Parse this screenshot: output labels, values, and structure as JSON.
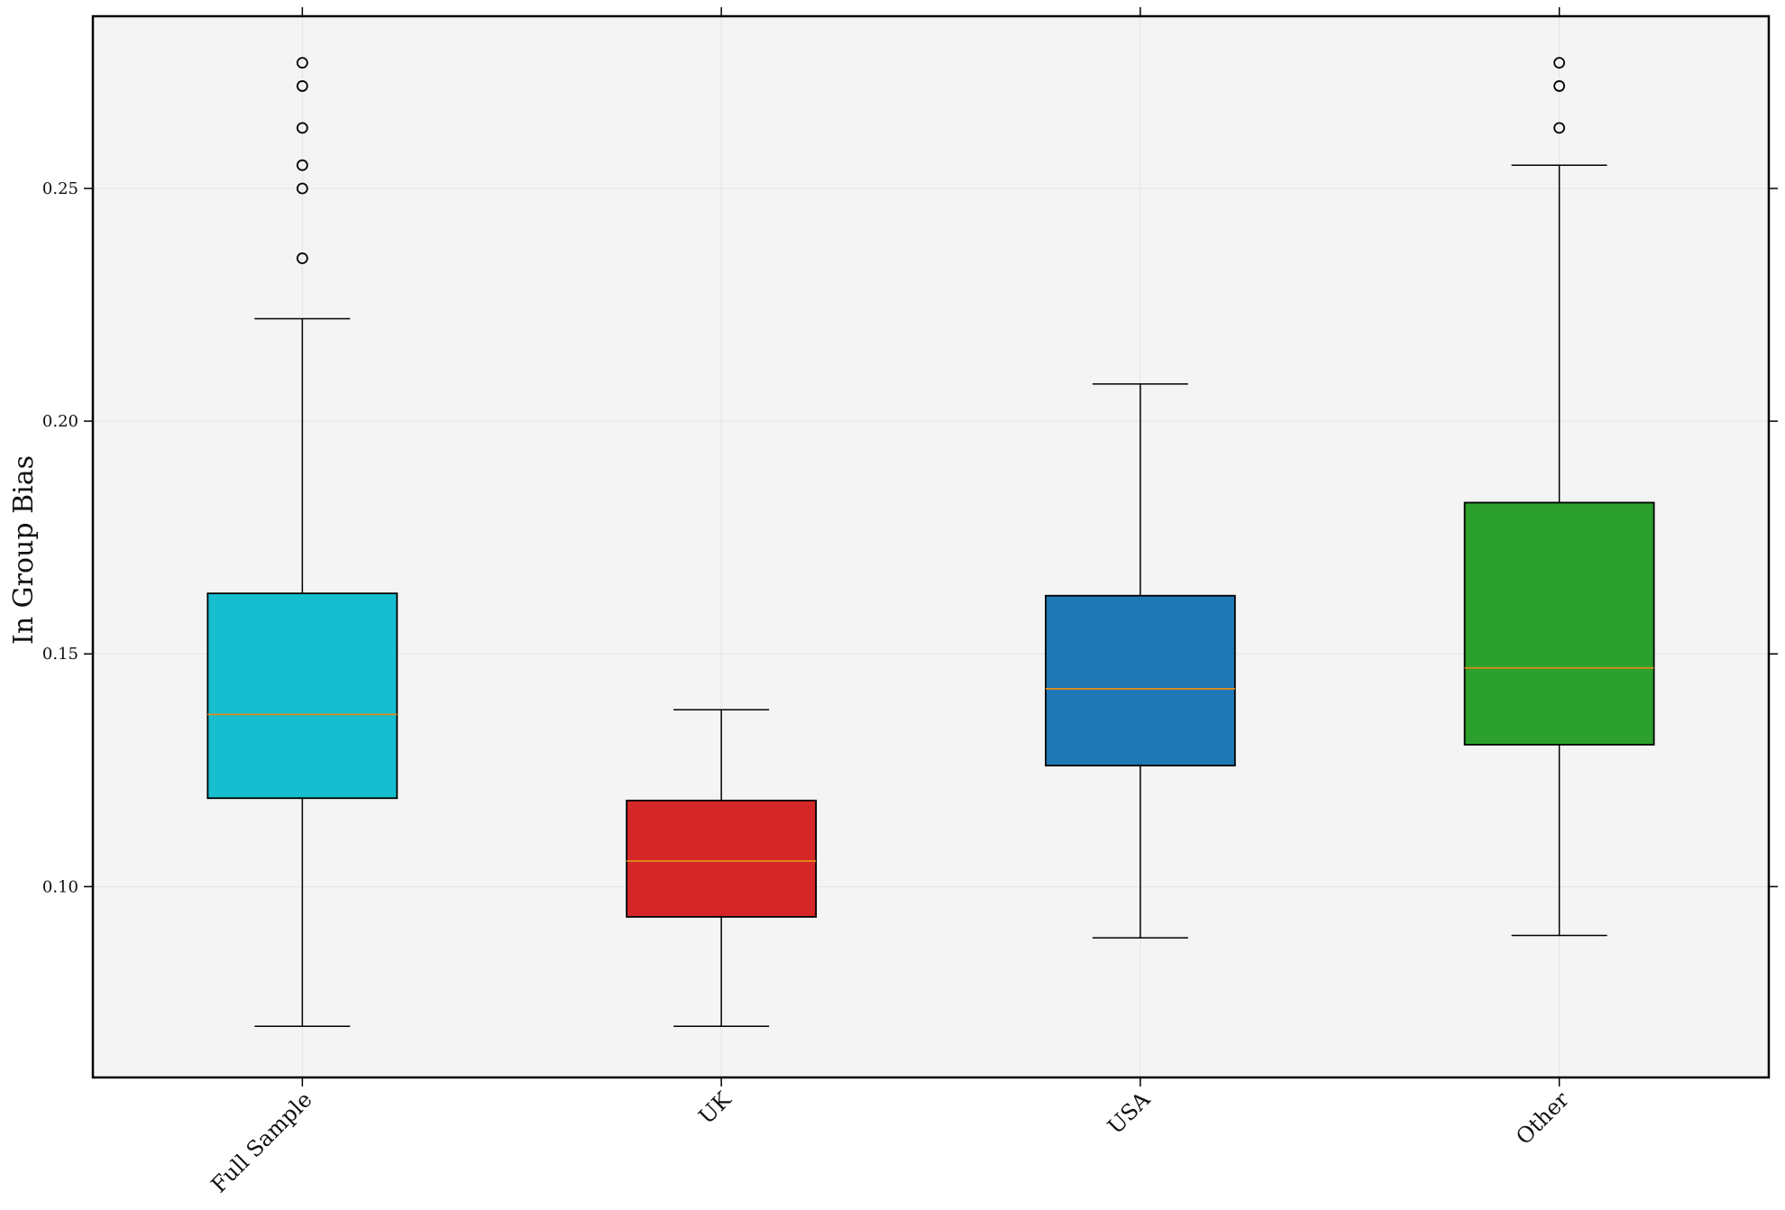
{
  "chart_data": {
    "type": "box",
    "ylabel": "In Group Bias",
    "xlabel": "",
    "title": "",
    "ylim": [
      0.059,
      0.287
    ],
    "yticks": [
      0.1,
      0.15,
      0.2,
      0.25
    ],
    "ytick_labels": [
      "0.10",
      "0.15",
      "0.20",
      "0.25"
    ],
    "grid": true,
    "background": "#f4f4f4",
    "median_color": "#e08a1e",
    "categories": [
      "Full Sample",
      "UK",
      "USA",
      "Other"
    ],
    "boxes": [
      {
        "label": "Full Sample",
        "color": "#17becf",
        "whisker_low": 0.07,
        "q1": 0.119,
        "median": 0.137,
        "q3": 0.163,
        "whisker_high": 0.222,
        "outliers": [
          0.235,
          0.25,
          0.255,
          0.263,
          0.272,
          0.277
        ]
      },
      {
        "label": "UK",
        "color": "#d62728",
        "whisker_low": 0.07,
        "q1": 0.0935,
        "median": 0.1055,
        "q3": 0.1185,
        "whisker_high": 0.138,
        "outliers": []
      },
      {
        "label": "USA",
        "color": "#1f77b4",
        "whisker_low": 0.089,
        "q1": 0.126,
        "median": 0.1425,
        "q3": 0.1625,
        "whisker_high": 0.208,
        "outliers": []
      },
      {
        "label": "Other",
        "color": "#2ca02c",
        "whisker_low": 0.0895,
        "q1": 0.1305,
        "median": 0.147,
        "q3": 0.1825,
        "whisker_high": 0.255,
        "outliers": [
          0.263,
          0.272,
          0.277
        ]
      }
    ]
  }
}
